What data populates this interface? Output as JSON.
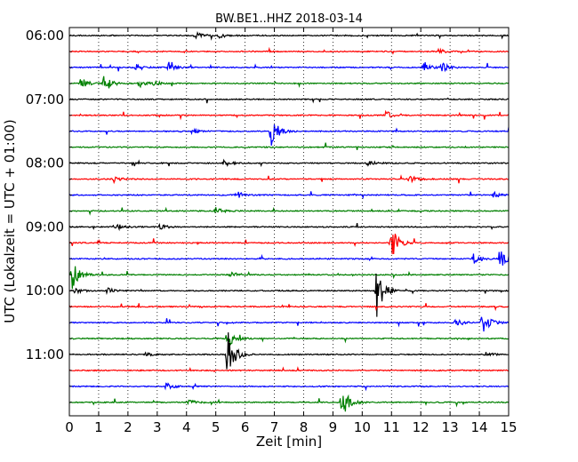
{
  "chart_data": {
    "type": "line",
    "subtype": "seismogram-dayplot",
    "title": "BW.BE1..HHZ 2018-03-14",
    "xlabel": "Zeit  [min]",
    "ylabel": "UTC (Lokalzeit = UTC + 01:00)",
    "xlim": [
      0,
      15
    ],
    "x_ticks": [
      "0",
      "1",
      "2",
      "3",
      "4",
      "5",
      "6",
      "7",
      "8",
      "9",
      "10",
      "11",
      "12",
      "13",
      "14",
      "15"
    ],
    "y_ticks": [
      "06:00",
      "07:00",
      "08:00",
      "09:00",
      "10:00",
      "11:00"
    ],
    "grid": "vertical dotted",
    "trace_colors": [
      "#000000",
      "#ff0000",
      "#0000ff",
      "#008000"
    ],
    "trace_start": "06:00",
    "trace_interval_min": 15,
    "trace_count": 24,
    "events": [
      {
        "trace": 0,
        "minute": 4.3,
        "amplitude": 0.4
      },
      {
        "trace": 0,
        "minute": 5.1,
        "amplitude": 0.3
      },
      {
        "trace": 1,
        "minute": 12.6,
        "amplitude": 0.3
      },
      {
        "trace": 2,
        "minute": 2.3,
        "amplitude": 0.4
      },
      {
        "trace": 2,
        "minute": 3.4,
        "amplitude": 0.4
      },
      {
        "trace": 2,
        "minute": 12.1,
        "amplitude": 0.7
      },
      {
        "trace": 2,
        "minute": 12.7,
        "amplitude": 0.6
      },
      {
        "trace": 3,
        "minute": 0.4,
        "amplitude": 0.7
      },
      {
        "trace": 3,
        "minute": 1.2,
        "amplitude": 1.1
      },
      {
        "trace": 3,
        "minute": 2.4,
        "amplitude": 0.4
      },
      {
        "trace": 3,
        "minute": 2.9,
        "amplitude": 0.3
      },
      {
        "trace": 5,
        "minute": 10.8,
        "amplitude": 0.5
      },
      {
        "trace": 6,
        "minute": 6.9,
        "amplitude": 1.8
      },
      {
        "trace": 6,
        "minute": 4.2,
        "amplitude": 0.3
      },
      {
        "trace": 8,
        "minute": 5.3,
        "amplitude": 0.4
      },
      {
        "trace": 8,
        "minute": 10.2,
        "amplitude": 0.3
      },
      {
        "trace": 9,
        "minute": 1.5,
        "amplitude": 0.4
      },
      {
        "trace": 9,
        "minute": 11.6,
        "amplitude": 0.5
      },
      {
        "trace": 10,
        "minute": 5.7,
        "amplitude": 0.5
      },
      {
        "trace": 10,
        "minute": 14.5,
        "amplitude": 0.3
      },
      {
        "trace": 11,
        "minute": 5.0,
        "amplitude": 0.4
      },
      {
        "trace": 12,
        "minute": 1.6,
        "amplitude": 0.4
      },
      {
        "trace": 12,
        "minute": 3.1,
        "amplitude": 0.3
      },
      {
        "trace": 13,
        "minute": 11.0,
        "amplitude": 1.9
      },
      {
        "trace": 14,
        "minute": 14.7,
        "amplitude": 1.3
      },
      {
        "trace": 14,
        "minute": 13.8,
        "amplitude": 0.6
      },
      {
        "trace": 15,
        "minute": 0.1,
        "amplitude": 1.6
      },
      {
        "trace": 15,
        "minute": 5.5,
        "amplitude": 0.4
      },
      {
        "trace": 16,
        "minute": 10.5,
        "amplitude": 3.0
      },
      {
        "trace": 16,
        "minute": 1.3,
        "amplitude": 0.3
      },
      {
        "trace": 16,
        "minute": 0.2,
        "amplitude": 0.4
      },
      {
        "trace": 18,
        "minute": 14.1,
        "amplitude": 1.5
      },
      {
        "trace": 18,
        "minute": 13.2,
        "amplitude": 0.5
      },
      {
        "trace": 19,
        "minute": 5.4,
        "amplitude": 1.1
      },
      {
        "trace": 20,
        "minute": 5.4,
        "amplitude": 2.8
      },
      {
        "trace": 20,
        "minute": 14.2,
        "amplitude": 0.3
      },
      {
        "trace": 20,
        "minute": 2.6,
        "amplitude": 0.2
      },
      {
        "trace": 22,
        "minute": 3.3,
        "amplitude": 0.4
      },
      {
        "trace": 23,
        "minute": 9.3,
        "amplitude": 2.0
      },
      {
        "trace": 23,
        "minute": 4.1,
        "amplitude": 0.3
      }
    ]
  }
}
